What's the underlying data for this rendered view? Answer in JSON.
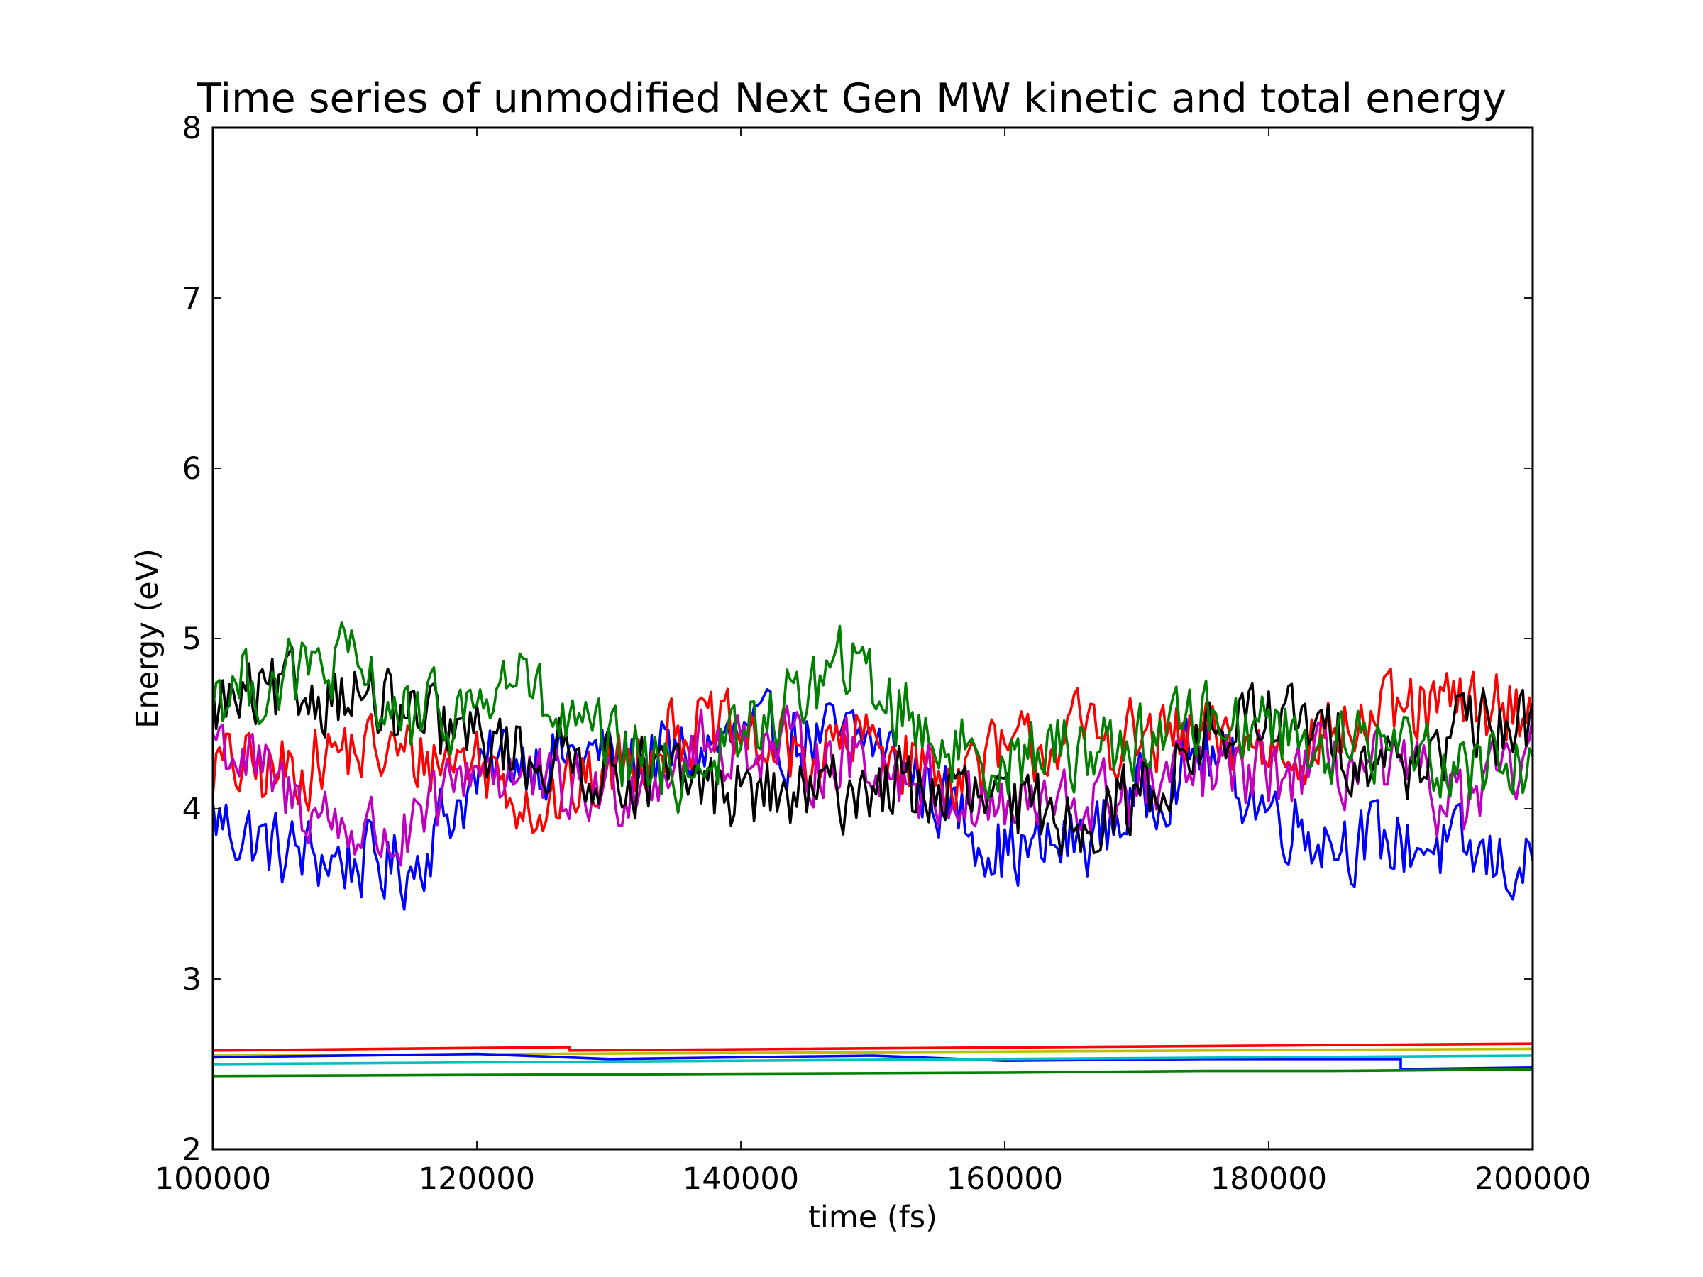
{
  "chart_data": {
    "type": "line",
    "title": "Time series of unmodified Next Gen MW kinetic and total energy",
    "xlabel": "time (fs)",
    "ylabel": "Energy (eV)",
    "xlim": [
      100000,
      200000
    ],
    "ylim": [
      2,
      8
    ],
    "xticks": [
      100000,
      120000,
      140000,
      160000,
      180000,
      200000
    ],
    "yticks": [
      2,
      3,
      4,
      5,
      6,
      7,
      8
    ],
    "grid": false,
    "legend": "none",
    "noise": {
      "step": 250,
      "amplitude": 0.42
    },
    "series": [
      {
        "group": "kinetic",
        "color": "#0000ff",
        "x": [
          100000,
          105000,
          110000,
          115000,
          118000,
          122000,
          126000,
          130000,
          135000,
          140000,
          145000,
          150000,
          153000,
          156000,
          160000,
          163000,
          167000,
          171000,
          175000,
          180000,
          184000,
          188000,
          192000,
          196000,
          200000
        ],
        "y": [
          3.95,
          3.75,
          3.7,
          3.65,
          4.0,
          4.3,
          4.3,
          4.3,
          4.3,
          4.4,
          4.4,
          4.4,
          4.2,
          4.0,
          3.75,
          3.75,
          3.85,
          4.1,
          4.35,
          4.0,
          3.85,
          3.8,
          3.8,
          3.7,
          3.65
        ]
      },
      {
        "group": "kinetic",
        "color": "#ff0000",
        "x": [
          100000,
          105000,
          110000,
          115000,
          120000,
          125000,
          130000,
          135000,
          140000,
          145000,
          150000,
          155000,
          160000,
          165000,
          170000,
          175000,
          180000,
          185000,
          190000,
          195000,
          200000
        ],
        "y": [
          4.25,
          4.2,
          4.35,
          4.3,
          4.3,
          4.0,
          4.2,
          4.5,
          4.4,
          4.3,
          4.4,
          4.2,
          4.3,
          4.45,
          4.4,
          4.4,
          4.35,
          4.45,
          4.55,
          4.6,
          4.6
        ]
      },
      {
        "group": "kinetic",
        "color": "#bf00bf",
        "x": [
          100000,
          105000,
          110000,
          115000,
          120000,
          125000,
          130000,
          135000,
          140000,
          145000,
          150000,
          155000,
          160000,
          165000,
          170000,
          175000,
          180000,
          185000,
          190000,
          195000,
          200000
        ],
        "y": [
          4.45,
          4.1,
          3.9,
          3.8,
          4.3,
          4.1,
          4.1,
          4.3,
          4.4,
          4.3,
          4.3,
          4.1,
          4.0,
          4.0,
          4.1,
          4.2,
          4.2,
          4.25,
          4.2,
          4.0,
          4.3
        ]
      },
      {
        "group": "kinetic",
        "color": "#000000",
        "x": [
          100000,
          105000,
          110000,
          115000,
          120000,
          125000,
          130000,
          135000,
          140000,
          145000,
          150000,
          155000,
          160000,
          165000,
          170000,
          175000,
          180000,
          185000,
          190000,
          195000,
          200000
        ],
        "y": [
          4.6,
          4.65,
          4.7,
          4.5,
          4.4,
          4.3,
          4.25,
          4.15,
          4.1,
          4.05,
          4.15,
          4.1,
          4.0,
          3.95,
          4.05,
          4.4,
          4.55,
          4.4,
          4.25,
          4.45,
          4.5
        ]
      },
      {
        "group": "kinetic",
        "color": "#008000",
        "x": [
          100000,
          105000,
          110000,
          115000,
          120000,
          123000,
          126000,
          130000,
          135000,
          140000,
          145000,
          148000,
          152000,
          156000,
          160000,
          165000,
          170000,
          175000,
          180000,
          185000,
          190000,
          195000,
          200000
        ],
        "y": [
          4.7,
          4.75,
          4.85,
          4.5,
          4.6,
          4.8,
          4.5,
          4.35,
          4.2,
          4.4,
          4.7,
          4.85,
          4.6,
          4.35,
          4.3,
          4.35,
          4.4,
          4.55,
          4.5,
          4.35,
          4.4,
          4.25,
          4.3
        ]
      },
      {
        "group": "total",
        "color": "#ff0000",
        "x": [
          100000,
          127000,
          127000,
          200000
        ],
        "y": [
          2.58,
          2.6,
          2.58,
          2.62
        ]
      },
      {
        "group": "total",
        "color": "#bfbf00",
        "x": [
          100000,
          200000
        ],
        "y": [
          2.55,
          2.59
        ]
      },
      {
        "group": "total",
        "color": "#0000ff",
        "x": [
          100000,
          120000,
          130000,
          150000,
          160000,
          175000,
          180000,
          190000,
          190000,
          200000
        ],
        "y": [
          2.54,
          2.56,
          2.53,
          2.55,
          2.52,
          2.53,
          2.53,
          2.53,
          2.47,
          2.48
        ]
      },
      {
        "group": "total",
        "color": "#00bfbf",
        "x": [
          100000,
          200000
        ],
        "y": [
          2.5,
          2.55
        ]
      },
      {
        "group": "total",
        "color": "#008000",
        "x": [
          100000,
          160000,
          175000,
          185000,
          200000
        ],
        "y": [
          2.43,
          2.45,
          2.46,
          2.46,
          2.47
        ]
      }
    ]
  }
}
